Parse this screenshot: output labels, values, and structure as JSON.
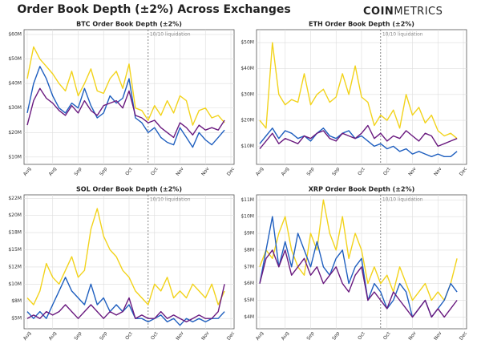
{
  "title": "Order Book Depth (±2%) Across Exchanges",
  "logo": {
    "bold": "COIN",
    "light": "METRICS"
  },
  "chart_data": [
    {
      "type": "line",
      "title": "BTC Order Book Depth (±2%)",
      "annotation": {
        "text": "10/10 liquidation",
        "index": 19
      },
      "grid": true,
      "categories": [
        "Aug",
        null,
        null,
        null,
        "Aug",
        null,
        null,
        null,
        "Sep",
        null,
        null,
        null,
        "Sep",
        null,
        null,
        null,
        "Oct",
        null,
        null,
        null,
        "Oct",
        null,
        null,
        null,
        "Nov",
        null,
        null,
        null,
        "Nov",
        null,
        null,
        null,
        "Dec"
      ],
      "ylim": [
        7,
        62
      ],
      "yticks": [
        {
          "value": 10,
          "label": "$10M"
        },
        {
          "value": 20,
          "label": "$20M"
        },
        {
          "value": 30,
          "label": "$30M"
        },
        {
          "value": 40,
          "label": "$40M"
        },
        {
          "value": 50,
          "label": "$50M"
        },
        {
          "value": 60,
          "label": "$60M"
        }
      ],
      "series": [
        {
          "color": "#f2d31b",
          "values": [
            42,
            55,
            50,
            47,
            44,
            40,
            37,
            45,
            35,
            40,
            46,
            37,
            36,
            42,
            45,
            38,
            48,
            30,
            29,
            25,
            31,
            27,
            33,
            28,
            35,
            33,
            23,
            29,
            30,
            26,
            27,
            24,
            null
          ]
        },
        {
          "color": "#1f5fbf",
          "values": [
            28,
            40,
            47,
            42,
            35,
            30,
            28,
            32,
            30,
            38,
            31,
            26,
            28,
            35,
            32,
            34,
            42,
            26,
            24,
            20,
            22,
            18,
            16,
            15,
            22,
            18,
            14,
            20,
            17,
            15,
            18,
            21,
            null
          ]
        },
        {
          "color": "#6a1a7f",
          "values": [
            23,
            33,
            38,
            34,
            32,
            29,
            27,
            31,
            28,
            33,
            29,
            27,
            31,
            32,
            33,
            30,
            37,
            27,
            26,
            24,
            25,
            22,
            20,
            18,
            24,
            22,
            19,
            23,
            21,
            22,
            21,
            25,
            null
          ]
        }
      ]
    },
    {
      "type": "line",
      "title": "ETH Order Book Depth (±2%)",
      "annotation": {
        "text": "10/10 liquidation",
        "index": 19
      },
      "grid": true,
      "categories": [
        "Aug",
        null,
        null,
        null,
        "Aug",
        null,
        null,
        null,
        "Sep",
        null,
        null,
        null,
        "Sep",
        null,
        null,
        null,
        "Oct",
        null,
        null,
        null,
        "Oct",
        null,
        null,
        null,
        "Nov",
        null,
        null,
        null,
        "Nov",
        null,
        null,
        null,
        "Dec"
      ],
      "ylim": [
        3,
        55
      ],
      "yticks": [
        {
          "value": 10,
          "label": "$10M"
        },
        {
          "value": 20,
          "label": "$20M"
        },
        {
          "value": 30,
          "label": "$30M"
        },
        {
          "value": 40,
          "label": "$40M"
        },
        {
          "value": 50,
          "label": "$50M"
        }
      ],
      "series": [
        {
          "color": "#f2d31b",
          "values": [
            20,
            17,
            50,
            30,
            26,
            28,
            27,
            38,
            26,
            30,
            32,
            27,
            29,
            38,
            30,
            41,
            29,
            27,
            18,
            22,
            20,
            24,
            17,
            30,
            22,
            25,
            19,
            22,
            16,
            14,
            15,
            13,
            null
          ]
        },
        {
          "color": "#1f5fbf",
          "values": [
            11,
            14,
            17,
            13,
            16,
            15,
            13,
            14,
            12,
            15,
            17,
            14,
            13,
            15,
            16,
            13,
            14,
            12,
            10,
            11,
            9,
            10,
            8,
            9,
            7,
            8,
            7,
            6,
            7,
            6,
            6,
            8,
            null
          ]
        },
        {
          "color": "#6a1a7f",
          "values": [
            9,
            12,
            15,
            11,
            13,
            12,
            11,
            14,
            13,
            15,
            16,
            13,
            12,
            15,
            14,
            13,
            15,
            18,
            13,
            15,
            12,
            14,
            13,
            16,
            14,
            12,
            15,
            14,
            10,
            11,
            12,
            13,
            null
          ]
        }
      ]
    },
    {
      "type": "line",
      "title": "SOL Order Book Depth (±2%)",
      "annotation": {
        "text": "10/10 liquidation",
        "index": 19
      },
      "grid": true,
      "categories": [
        "Aug",
        null,
        null,
        null,
        "Aug",
        null,
        null,
        null,
        "Sep",
        null,
        null,
        null,
        "Sep",
        null,
        null,
        null,
        "Oct",
        null,
        null,
        null,
        "Oct",
        null,
        null,
        null,
        "Nov",
        null,
        null,
        null,
        "Nov",
        null,
        null,
        null,
        "Dec"
      ],
      "ylim": [
        3.5,
        23
      ],
      "yticks": [
        {
          "value": 5,
          "label": "$5M"
        },
        {
          "value": 7.5,
          "label": "$8M"
        },
        {
          "value": 10,
          "label": "$10M"
        },
        {
          "value": 12.5,
          "label": "$12M"
        },
        {
          "value": 15,
          "label": "$15M"
        },
        {
          "value": 17.5,
          "label": "$18M"
        },
        {
          "value": 20,
          "label": "$20M"
        },
        {
          "value": 22.5,
          "label": "$22M"
        }
      ],
      "series": [
        {
          "color": "#f2d31b",
          "values": [
            8,
            7,
            9,
            13,
            11,
            10,
            12,
            14,
            11,
            12,
            18,
            21,
            17,
            15,
            14,
            12,
            11,
            9,
            8,
            7,
            10,
            9,
            11,
            8,
            9,
            8,
            10,
            9,
            8,
            10,
            7,
            9,
            null
          ]
        },
        {
          "color": "#1f5fbf",
          "values": [
            6,
            5,
            6,
            5,
            7,
            9,
            11,
            9,
            8,
            7,
            10,
            7,
            8,
            6,
            7,
            6,
            7,
            5,
            5,
            4.5,
            5,
            5.5,
            4.5,
            5,
            4,
            5,
            4.5,
            5,
            4.5,
            5,
            5,
            6,
            null
          ]
        },
        {
          "color": "#6a1a7f",
          "values": [
            5,
            5.5,
            5,
            6,
            5.5,
            6,
            7,
            6,
            5,
            6,
            7,
            6,
            5,
            6,
            5.5,
            6,
            8,
            5,
            5.5,
            5,
            5,
            6,
            5,
            5.5,
            5,
            4.5,
            5,
            5.5,
            5,
            5,
            6,
            10,
            null
          ]
        }
      ]
    },
    {
      "type": "line",
      "title": "XRP Order Book Depth (±2%)",
      "annotation": {
        "text": "10/10 liquidation",
        "index": 19
      },
      "grid": true,
      "categories": [
        "Aug",
        null,
        null,
        null,
        "Aug",
        null,
        null,
        null,
        "Sep",
        null,
        null,
        null,
        "Sep",
        null,
        null,
        null,
        "Oct",
        null,
        null,
        null,
        "Oct",
        null,
        null,
        null,
        "Nov",
        null,
        null,
        null,
        "Nov",
        null,
        null,
        null,
        "Dec"
      ],
      "ylim": [
        3.3,
        11.3
      ],
      "yticks": [
        {
          "value": 4,
          "label": "$4M"
        },
        {
          "value": 5,
          "label": "$5M"
        },
        {
          "value": 6,
          "label": "$6M"
        },
        {
          "value": 7,
          "label": "$7M"
        },
        {
          "value": 8,
          "label": "$8M"
        },
        {
          "value": 9,
          "label": "$9M"
        },
        {
          "value": 10,
          "label": "$10M"
        },
        {
          "value": 11,
          "label": "$11M"
        }
      ],
      "series": [
        {
          "color": "#f2d31b",
          "values": [
            7,
            8,
            7.5,
            9,
            10,
            8,
            7,
            6.5,
            9,
            8,
            11,
            9,
            8,
            10,
            7.5,
            9,
            8,
            6,
            7,
            6,
            6.5,
            5.5,
            7,
            6,
            5,
            5.5,
            6,
            5,
            5.5,
            5,
            6,
            7.5,
            null
          ]
        },
        {
          "color": "#1f5fbf",
          "values": [
            6,
            8,
            10,
            7,
            8.5,
            7,
            9,
            8,
            7,
            8.5,
            7,
            6.5,
            7.5,
            8,
            6,
            7,
            7.5,
            5,
            6,
            5.5,
            4.5,
            5,
            6,
            5.5,
            4,
            4.5,
            5,
            4,
            4.5,
            5,
            6,
            5.5,
            null
          ]
        },
        {
          "color": "#6a1a7f",
          "values": [
            6,
            7.5,
            8,
            7,
            8,
            6.5,
            7,
            7.5,
            6.5,
            7,
            6,
            6.5,
            7,
            6,
            5.5,
            6.5,
            7,
            5,
            5.5,
            5,
            4.5,
            5.5,
            5,
            4.5,
            4,
            4.5,
            5,
            4,
            4.5,
            4,
            4.5,
            5,
            null
          ]
        }
      ]
    }
  ]
}
